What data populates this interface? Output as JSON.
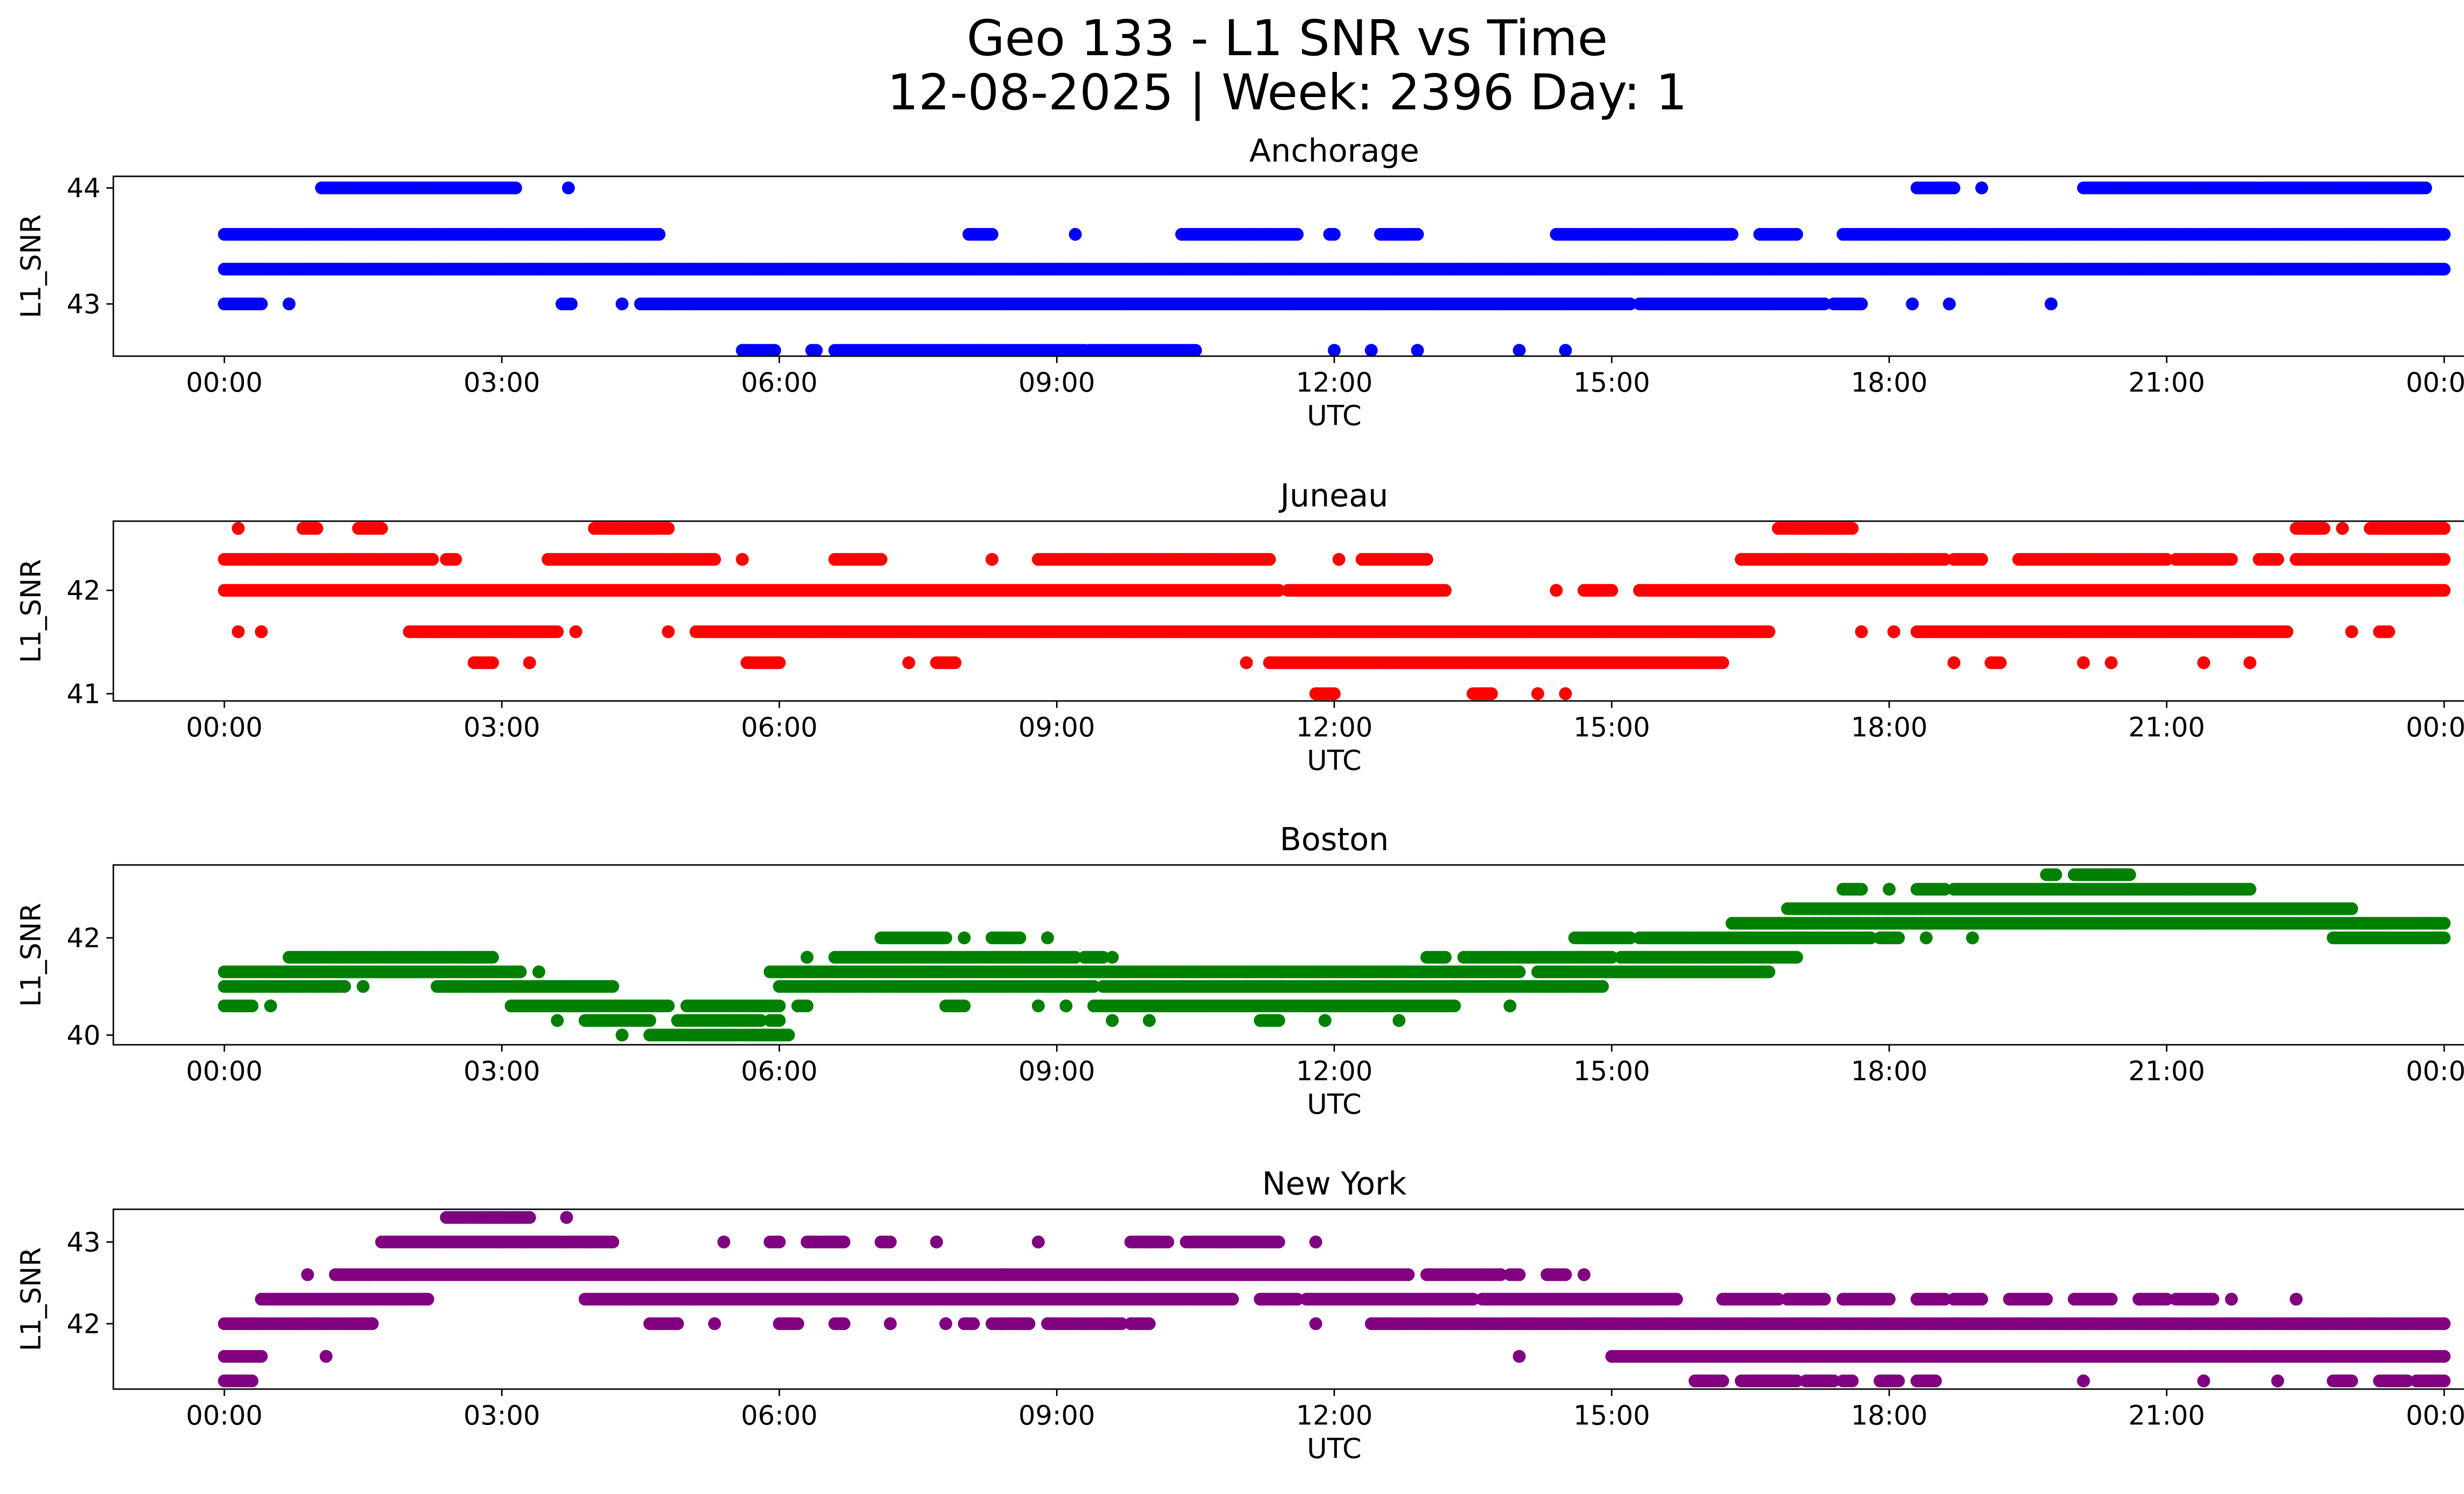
{
  "figure": {
    "title_line1": "Geo 133 - L1 SNR vs Time",
    "title_line2": "12-08-2025 | Week: 2396 Day: 1"
  },
  "chart_data": [
    {
      "type": "scatter",
      "title": "Anchorage",
      "xlabel": "UTC",
      "ylabel": "L1_SNR",
      "color": "#0000ff",
      "xticks": [
        "00:00",
        "03:00",
        "06:00",
        "09:00",
        "12:00",
        "15:00",
        "18:00",
        "21:00",
        "00:00"
      ],
      "xlim_hours": [
        -1.2,
        25.2
      ],
      "ylim": [
        42.55,
        44.1
      ],
      "yticks": [
        43,
        44
      ],
      "levels": [
        44.0,
        43.6,
        43.3,
        43.0,
        42.6
      ],
      "segments": [
        {
          "y": 44.0,
          "ranges": [
            [
              1.05,
              3.15
            ],
            [
              3.72,
              3.72
            ],
            [
              18.3,
              18.7
            ],
            [
              19.0,
              19.0
            ],
            [
              20.1,
              23.8
            ]
          ]
        },
        {
          "y": 43.6,
          "ranges": [
            [
              0.0,
              4.7
            ],
            [
              8.05,
              8.3
            ],
            [
              9.2,
              9.2
            ],
            [
              10.35,
              11.6
            ],
            [
              11.95,
              12.0
            ],
            [
              12.5,
              12.9
            ],
            [
              14.4,
              16.3
            ],
            [
              16.6,
              17.0
            ],
            [
              17.5,
              24.0
            ]
          ]
        },
        {
          "y": 43.3,
          "ranges": [
            [
              0.0,
              24.0
            ]
          ]
        },
        {
          "y": 43.0,
          "ranges": [
            [
              0.0,
              0.4
            ],
            [
              0.7,
              0.7
            ],
            [
              3.65,
              3.75
            ],
            [
              4.3,
              4.3
            ],
            [
              4.5,
              15.2
            ],
            [
              15.3,
              17.3
            ],
            [
              17.4,
              17.7
            ],
            [
              18.25,
              18.25
            ],
            [
              18.65,
              18.65
            ],
            [
              19.75,
              19.75
            ]
          ]
        },
        {
          "y": 42.6,
          "ranges": [
            [
              5.6,
              5.95
            ],
            [
              6.35,
              6.4
            ],
            [
              6.6,
              6.9
            ],
            [
              6.9,
              8.2
            ],
            [
              8.2,
              9.3
            ],
            [
              9.35,
              10.5
            ],
            [
              12.0,
              12.0
            ],
            [
              12.4,
              12.4
            ],
            [
              12.9,
              12.9
            ],
            [
              14.0,
              14.0
            ],
            [
              14.5,
              14.5
            ]
          ]
        }
      ]
    },
    {
      "type": "scatter",
      "title": "Juneau",
      "xlabel": "UTC",
      "ylabel": "L1_SNR",
      "color": "#ff0000",
      "xticks": [
        "00:00",
        "03:00",
        "06:00",
        "09:00",
        "12:00",
        "15:00",
        "18:00",
        "21:00",
        "00:00"
      ],
      "xlim_hours": [
        -1.2,
        25.2
      ],
      "ylim": [
        40.93,
        42.67
      ],
      "yticks": [
        41,
        42
      ],
      "levels": [
        42.6,
        42.3,
        42.0,
        41.6,
        41.3,
        41.0
      ],
      "segments": [
        {
          "y": 42.6,
          "ranges": [
            [
              0.15,
              0.15
            ],
            [
              0.85,
              1.0
            ],
            [
              1.45,
              1.7
            ],
            [
              4.0,
              4.8
            ],
            [
              16.8,
              17.6
            ],
            [
              22.4,
              22.7
            ],
            [
              22.9,
              22.9
            ],
            [
              23.2,
              24.0
            ]
          ]
        },
        {
          "y": 42.3,
          "ranges": [
            [
              0.0,
              2.25
            ],
            [
              2.4,
              2.5
            ],
            [
              3.5,
              5.3
            ],
            [
              5.6,
              5.6
            ],
            [
              6.6,
              7.0
            ],
            [
              7.0,
              7.1
            ],
            [
              8.3,
              8.3
            ],
            [
              8.8,
              11.3
            ],
            [
              12.05,
              12.05
            ],
            [
              12.3,
              13.0
            ],
            [
              16.4,
              18.6
            ],
            [
              18.7,
              19.0
            ],
            [
              19.4,
              21.0
            ],
            [
              21.1,
              21.7
            ],
            [
              22.0,
              22.2
            ],
            [
              22.4,
              24.0
            ]
          ]
        },
        {
          "y": 42.0,
          "ranges": [
            [
              0.0,
              11.4
            ],
            [
              11.5,
              13.2
            ],
            [
              14.4,
              14.4
            ],
            [
              14.7,
              15.0
            ],
            [
              15.3,
              24.0
            ]
          ]
        },
        {
          "y": 41.6,
          "ranges": [
            [
              0.15,
              0.15
            ],
            [
              0.4,
              0.4
            ],
            [
              2.0,
              3.6
            ],
            [
              3.8,
              3.8
            ],
            [
              4.8,
              4.8
            ],
            [
              5.1,
              16.7
            ],
            [
              17.7,
              17.7
            ],
            [
              18.05,
              18.05
            ],
            [
              18.3,
              22.3
            ],
            [
              23.0,
              23.0
            ],
            [
              23.3,
              23.4
            ]
          ]
        },
        {
          "y": 41.3,
          "ranges": [
            [
              2.7,
              2.9
            ],
            [
              3.3,
              3.3
            ],
            [
              5.65,
              6.0
            ],
            [
              7.4,
              7.4
            ],
            [
              7.7,
              7.9
            ],
            [
              11.05,
              11.05
            ],
            [
              11.3,
              16.2
            ],
            [
              18.7,
              18.7
            ],
            [
              19.1,
              19.2
            ],
            [
              20.1,
              20.1
            ],
            [
              20.4,
              20.4
            ],
            [
              21.4,
              21.4
            ],
            [
              21.9,
              21.9
            ]
          ]
        },
        {
          "y": 41.0,
          "ranges": [
            [
              11.8,
              12.0
            ],
            [
              13.5,
              13.7
            ],
            [
              14.2,
              14.2
            ],
            [
              14.5,
              14.5
            ]
          ]
        }
      ]
    },
    {
      "type": "scatter",
      "title": "Boston",
      "xlabel": "UTC",
      "ylabel": "L1_SNR",
      "color": "#008000",
      "xticks": [
        "00:00",
        "03:00",
        "06:00",
        "09:00",
        "12:00",
        "15:00",
        "18:00",
        "21:00",
        "00:00"
      ],
      "xlim_hours": [
        -1.2,
        25.2
      ],
      "ylim": [
        39.8,
        43.5
      ],
      "yticks": [
        40,
        42
      ],
      "levels": [
        43.3,
        43.0,
        42.6,
        42.3,
        42.0,
        41.6,
        41.3,
        41.0,
        40.6,
        40.3,
        40.0
      ],
      "segments": [
        {
          "y": 43.3,
          "ranges": [
            [
              19.7,
              19.8
            ],
            [
              20.0,
              20.6
            ]
          ]
        },
        {
          "y": 43.0,
          "ranges": [
            [
              17.5,
              17.7
            ],
            [
              18.0,
              18.0
            ],
            [
              18.3,
              18.6
            ],
            [
              18.7,
              21.9
            ]
          ]
        },
        {
          "y": 42.6,
          "ranges": [
            [
              16.9,
              23.0
            ]
          ]
        },
        {
          "y": 42.3,
          "ranges": [
            [
              16.3,
              24.0
            ]
          ]
        },
        {
          "y": 42.0,
          "ranges": [
            [
              7.1,
              7.8
            ],
            [
              8.0,
              8.0
            ],
            [
              8.3,
              8.6
            ],
            [
              8.9,
              8.9
            ],
            [
              14.6,
              15.2
            ],
            [
              15.3,
              17.8
            ],
            [
              17.9,
              18.1
            ],
            [
              18.4,
              18.4
            ],
            [
              18.9,
              18.9
            ],
            [
              22.8,
              24.0
            ]
          ]
        },
        {
          "y": 41.6,
          "ranges": [
            [
              0.7,
              2.9
            ],
            [
              6.3,
              6.3
            ],
            [
              6.6,
              9.2
            ],
            [
              9.3,
              9.5
            ],
            [
              9.6,
              9.6
            ],
            [
              13.0,
              13.2
            ],
            [
              13.4,
              15.0
            ],
            [
              15.1,
              17.0
            ]
          ]
        },
        {
          "y": 41.3,
          "ranges": [
            [
              0.0,
              3.2
            ],
            [
              3.4,
              3.4
            ],
            [
              5.9,
              14.0
            ],
            [
              14.2,
              16.7
            ]
          ]
        },
        {
          "y": 41.0,
          "ranges": [
            [
              0.0,
              1.3
            ],
            [
              1.5,
              1.5
            ],
            [
              2.3,
              4.2
            ],
            [
              6.0,
              9.4
            ],
            [
              9.5,
              14.9
            ]
          ]
        },
        {
          "y": 40.6,
          "ranges": [
            [
              0.0,
              0.3
            ],
            [
              0.5,
              0.5
            ],
            [
              3.1,
              4.8
            ],
            [
              5.0,
              6.0
            ],
            [
              6.2,
              6.3
            ],
            [
              7.8,
              8.0
            ],
            [
              8.8,
              8.8
            ],
            [
              9.1,
              9.1
            ],
            [
              9.4,
              13.3
            ],
            [
              13.9,
              13.9
            ]
          ]
        },
        {
          "y": 40.3,
          "ranges": [
            [
              3.6,
              3.6
            ],
            [
              3.9,
              4.6
            ],
            [
              4.9,
              5.8
            ],
            [
              5.9,
              6.0
            ],
            [
              9.6,
              9.6
            ],
            [
              10.0,
              10.0
            ],
            [
              11.2,
              11.4
            ],
            [
              11.9,
              11.9
            ],
            [
              12.7,
              12.7
            ]
          ]
        },
        {
          "y": 40.0,
          "ranges": [
            [
              4.3,
              4.3
            ],
            [
              4.6,
              6.1
            ]
          ]
        }
      ]
    },
    {
      "type": "scatter",
      "title": "New York",
      "xlabel": "UTC",
      "ylabel": "L1_SNR",
      "color": "#800080",
      "xticks": [
        "00:00",
        "03:00",
        "06:00",
        "09:00",
        "12:00",
        "15:00",
        "18:00",
        "21:00",
        "00:00"
      ],
      "xlim_hours": [
        -1.2,
        25.2
      ],
      "ylim": [
        41.2,
        43.4
      ],
      "yticks": [
        42,
        43
      ],
      "levels": [
        43.3,
        43.0,
        42.6,
        42.3,
        42.0,
        41.6,
        41.3
      ],
      "segments": [
        {
          "y": 43.3,
          "ranges": [
            [
              2.4,
              3.3
            ],
            [
              3.7,
              3.7
            ]
          ]
        },
        {
          "y": 43.0,
          "ranges": [
            [
              1.7,
              4.2
            ],
            [
              5.4,
              5.4
            ],
            [
              5.9,
              6.0
            ],
            [
              6.3,
              6.7
            ],
            [
              7.1,
              7.2
            ],
            [
              7.7,
              7.7
            ],
            [
              8.8,
              8.8
            ],
            [
              9.8,
              10.2
            ],
            [
              10.4,
              11.4
            ],
            [
              11.8,
              11.8
            ]
          ]
        },
        {
          "y": 42.6,
          "ranges": [
            [
              0.9,
              0.9
            ],
            [
              1.2,
              12.8
            ],
            [
              13.0,
              13.8
            ],
            [
              13.9,
              14.0
            ],
            [
              14.3,
              14.5
            ],
            [
              14.7,
              14.7
            ]
          ]
        },
        {
          "y": 42.3,
          "ranges": [
            [
              0.4,
              2.2
            ],
            [
              3.9,
              10.9
            ],
            [
              11.2,
              11.6
            ],
            [
              11.7,
              13.5
            ],
            [
              13.6,
              15.7
            ],
            [
              16.2,
              16.8
            ],
            [
              16.9,
              17.3
            ],
            [
              17.5,
              18.0
            ],
            [
              18.3,
              18.6
            ],
            [
              18.7,
              19.0
            ],
            [
              19.3,
              19.7
            ],
            [
              20.0,
              20.4
            ],
            [
              20.7,
              21.0
            ],
            [
              21.1,
              21.5
            ],
            [
              21.7,
              21.7
            ],
            [
              22.4,
              22.4
            ]
          ]
        },
        {
          "y": 42.0,
          "ranges": [
            [
              0.0,
              1.6
            ],
            [
              4.6,
              4.9
            ],
            [
              5.3,
              5.3
            ],
            [
              6.0,
              6.2
            ],
            [
              6.6,
              6.7
            ],
            [
              7.2,
              7.2
            ],
            [
              7.8,
              7.8
            ],
            [
              8.0,
              8.1
            ],
            [
              8.3,
              8.7
            ],
            [
              8.9,
              9.7
            ],
            [
              9.8,
              10.0
            ],
            [
              11.8,
              11.8
            ],
            [
              12.4,
              24.0
            ]
          ]
        },
        {
          "y": 41.6,
          "ranges": [
            [
              0.0,
              0.4
            ],
            [
              1.1,
              1.1
            ],
            [
              14.0,
              14.0
            ],
            [
              15.0,
              24.0
            ]
          ]
        },
        {
          "y": 41.3,
          "ranges": [
            [
              0.0,
              0.3
            ],
            [
              15.9,
              16.2
            ],
            [
              16.4,
              17.0
            ],
            [
              17.1,
              17.4
            ],
            [
              17.5,
              17.6
            ],
            [
              17.9,
              18.1
            ],
            [
              18.3,
              18.5
            ],
            [
              20.1,
              20.1
            ],
            [
              21.4,
              21.4
            ],
            [
              22.2,
              22.2
            ],
            [
              22.8,
              23.0
            ],
            [
              23.3,
              23.6
            ],
            [
              23.7,
              24.0
            ]
          ]
        }
      ]
    }
  ]
}
